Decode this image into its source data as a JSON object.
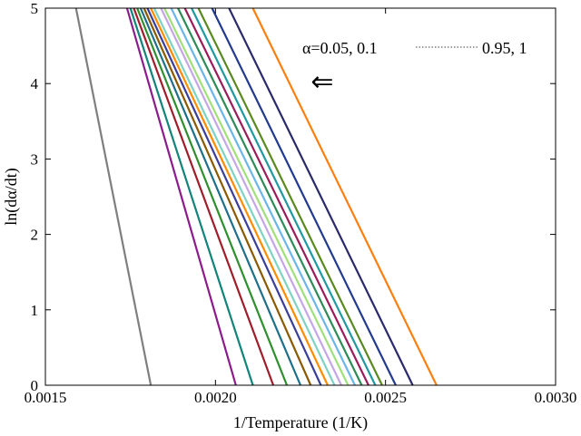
{
  "chart_data": {
    "type": "line",
    "title": "",
    "xlabel": "1/Temperature (1/K)",
    "ylabel": "ln(dα/dt)",
    "xlim": [
      0.0015,
      0.003
    ],
    "ylim": [
      0,
      5
    ],
    "x_ticks": [
      "0.0015",
      "0.0020",
      "0.0025",
      "0.0030"
    ],
    "y_ticks": [
      "0",
      "1",
      "2",
      "3",
      "4",
      "5"
    ],
    "grid": false,
    "annotation": {
      "start_text": "α=0.05, 0.1",
      "end_text": "0.95, 1",
      "arrow": "⇐"
    },
    "series": [
      {
        "x": [
          0.00159,
          0.00181
        ],
        "y": [
          5,
          0
        ],
        "color": "#7f7f7f"
      },
      {
        "x": [
          0.00174,
          0.00206
        ],
        "y": [
          5,
          0
        ],
        "color": "#8b1c8b"
      },
      {
        "x": [
          0.00175,
          0.00211
        ],
        "y": [
          5,
          0
        ],
        "color": "#12847a"
      },
      {
        "x": [
          0.00176,
          0.00217
        ],
        "y": [
          5,
          0
        ],
        "color": "#a01d2b"
      },
      {
        "x": [
          0.00177,
          0.00221
        ],
        "y": [
          5,
          0
        ],
        "color": "#2f8f2f"
      },
      {
        "x": [
          0.00178,
          0.00225
        ],
        "y": [
          5,
          0
        ],
        "color": "#1e6f8a"
      },
      {
        "x": [
          0.00179,
          0.00228
        ],
        "y": [
          5,
          0
        ],
        "color": "#8a5a00"
      },
      {
        "x": [
          0.0018,
          0.00231
        ],
        "y": [
          5,
          0
        ],
        "color": "#3a3f9a"
      },
      {
        "x": [
          0.00181,
          0.00233
        ],
        "y": [
          5,
          0
        ],
        "color": "#ff8c00"
      },
      {
        "x": [
          0.00182,
          0.00235
        ],
        "y": [
          5,
          0
        ],
        "color": "#7fd3c3"
      },
      {
        "x": [
          0.00184,
          0.00237
        ],
        "y": [
          5,
          0
        ],
        "color": "#c5a6e6"
      },
      {
        "x": [
          0.00185,
          0.00239
        ],
        "y": [
          5,
          0
        ],
        "color": "#a0e07a"
      },
      {
        "x": [
          0.00187,
          0.00241
        ],
        "y": [
          5,
          0
        ],
        "color": "#6bb6e8"
      },
      {
        "x": [
          0.00189,
          0.00243
        ],
        "y": [
          5,
          0
        ],
        "color": "#2e8b57"
      },
      {
        "x": [
          0.00191,
          0.00245
        ],
        "y": [
          5,
          0
        ],
        "color": "#9b1c5a"
      },
      {
        "x": [
          0.00193,
          0.00247
        ],
        "y": [
          5,
          0
        ],
        "color": "#1f9aa0"
      },
      {
        "x": [
          0.00195,
          0.00249
        ],
        "y": [
          5,
          0
        ],
        "color": "#5a8a1f"
      },
      {
        "x": [
          0.00199,
          0.00253
        ],
        "y": [
          5,
          0
        ],
        "color": "#223a8f"
      },
      {
        "x": [
          0.00204,
          0.00258
        ],
        "y": [
          5,
          0
        ],
        "color": "#2a2a6a"
      },
      {
        "x": [
          0.00211,
          0.00265
        ],
        "y": [
          5,
          0
        ],
        "color": "#ff7f0e"
      }
    ]
  }
}
